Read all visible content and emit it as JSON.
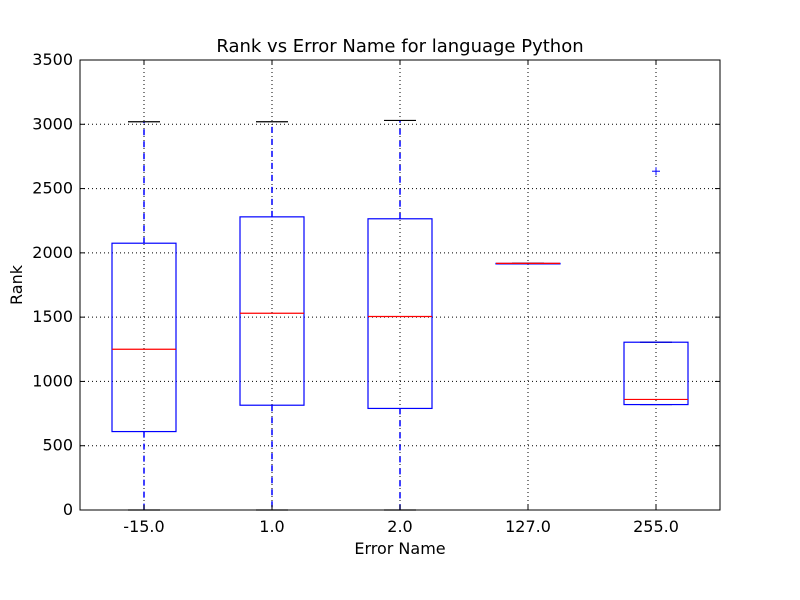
{
  "chart_data": {
    "type": "boxplot",
    "title": "Rank vs Error Name for language Python",
    "xlabel": "Error Name",
    "ylabel": "Rank",
    "ylim": [
      0,
      3500
    ],
    "yticks": [
      0,
      500,
      1000,
      1500,
      2000,
      2500,
      3000,
      3500
    ],
    "yticklabels": [
      "0",
      "500",
      "1000",
      "1500",
      "2000",
      "2500",
      "3000",
      "3500"
    ],
    "categories": [
      "-15.0",
      "1.0",
      "2.0",
      "127.0",
      "255.0"
    ],
    "grid": true,
    "boxes": [
      {
        "whislo": 0,
        "q1": 610,
        "med": 1250,
        "q3": 2075,
        "whishi": 3020,
        "fliers": []
      },
      {
        "whislo": 0,
        "q1": 815,
        "med": 1530,
        "q3": 2280,
        "whishi": 3020,
        "fliers": []
      },
      {
        "whislo": 0,
        "q1": 790,
        "med": 1505,
        "q3": 2265,
        "whishi": 3030,
        "fliers": []
      },
      {
        "whislo": 1918,
        "q1": 1918,
        "med": 1918,
        "q3": 1918,
        "whishi": 1918,
        "fliers": []
      },
      {
        "whislo": 820,
        "q1": 820,
        "med": 860,
        "q3": 1305,
        "whishi": 1305,
        "fliers": [
          2635
        ]
      }
    ],
    "colors": {
      "box": "#0000ff",
      "median": "#ff0000",
      "whisker": "#0000ff",
      "cap": "#000000",
      "flier": "#0000ff",
      "grid": "#000000"
    }
  }
}
